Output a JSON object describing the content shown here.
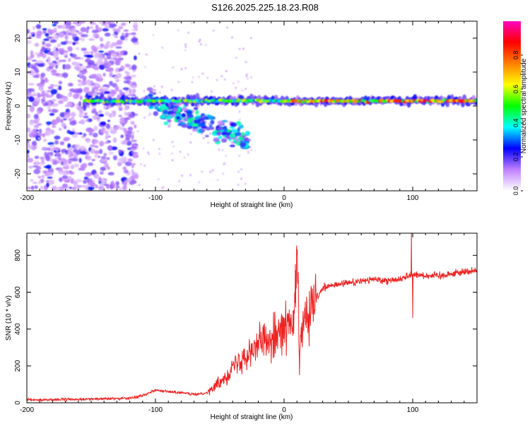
{
  "title": "S126.2025.225.18.23.R08",
  "chart_data": [
    {
      "type": "heatmap",
      "xlabel": "Height of straight line (km)",
      "ylabel": "Frequency (Hz)",
      "xlim": [
        -200,
        150
      ],
      "ylim": [
        -25,
        25
      ],
      "xticks": [
        -200,
        -100,
        0,
        100
      ],
      "yticks": [
        -20,
        -10,
        0,
        10,
        20
      ],
      "colorbar": {
        "label": "Normalized spectral amplitude",
        "range": [
          0,
          1
        ],
        "ticks": [
          "0.0",
          "0.2",
          "0.4",
          "0.6",
          "0.8"
        ],
        "colors": [
          "#ffffff",
          "#c080ff",
          "#0000ff",
          "#00ffff",
          "#00ff00",
          "#ffff00",
          "#ff8000",
          "#ff0000",
          "#ff00c0"
        ]
      },
      "features": {
        "noise_region_x": [
          -200,
          -115
        ],
        "main_band": {
          "x": [
            -155,
            150
          ],
          "freq": 1.5
        },
        "descending_branch": {
          "x": [
            -105,
            -28
          ],
          "freq": [
            1,
            -10
          ]
        },
        "strongest_segment_x": [
          5,
          150
        ]
      }
    },
    {
      "type": "line",
      "xlabel": "Height of straight line (km)",
      "ylabel": "SNR (10 * v/v)",
      "xlim": [
        -200,
        150
      ],
      "ylim": [
        0,
        920
      ],
      "xticks": [
        -200,
        -100,
        0,
        100
      ],
      "yticks": [
        0,
        200,
        400,
        600,
        800
      ],
      "color": "#ee2222",
      "series": [
        {
          "name": "SNR",
          "x": [
            -200,
            -150,
            -120,
            -110,
            -100,
            -90,
            -80,
            -70,
            -60,
            -50,
            -40,
            -30,
            -20,
            -12,
            -8,
            0,
            8,
            10,
            12,
            15,
            20,
            25,
            30,
            40,
            50,
            60,
            70,
            80,
            90,
            100,
            110,
            120,
            130,
            140,
            150
          ],
          "values": [
            15,
            20,
            25,
            40,
            70,
            60,
            55,
            45,
            55,
            110,
            190,
            270,
            320,
            350,
            380,
            400,
            440,
            800,
            280,
            430,
            480,
            560,
            620,
            640,
            650,
            660,
            670,
            665,
            670,
            700,
            690,
            690,
            700,
            710,
            720
          ]
        }
      ],
      "spikes": [
        {
          "x": 10,
          "value": 800
        },
        {
          "x": 12,
          "value": 150
        },
        {
          "x": 99,
          "value": 920
        },
        {
          "x": 100,
          "value": 460
        }
      ]
    }
  ]
}
